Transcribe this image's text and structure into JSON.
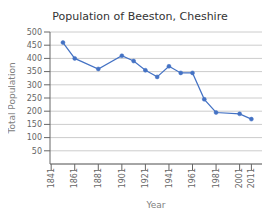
{
  "chart_data": {
    "type": "line",
    "title": "Population of Beeston, Cheshire",
    "xlabel": "Year",
    "ylabel": "Total Population",
    "x": [
      1851,
      1861,
      1881,
      1901,
      1911,
      1921,
      1931,
      1941,
      1951,
      1961,
      1971,
      1981,
      2001,
      2011
    ],
    "values": [
      460,
      400,
      360,
      410,
      390,
      355,
      330,
      370,
      345,
      345,
      245,
      195,
      190,
      170
    ],
    "xlim": [
      1840,
      2020
    ],
    "ylim": [
      0,
      500
    ],
    "xticks": [
      1841,
      1861,
      1881,
      1901,
      1921,
      1941,
      1961,
      1981,
      2001,
      2011
    ],
    "yticks": [
      50,
      100,
      150,
      200,
      250,
      300,
      350,
      400,
      450,
      500
    ],
    "color": "#4472C4",
    "marker": "circle",
    "grid": true
  }
}
